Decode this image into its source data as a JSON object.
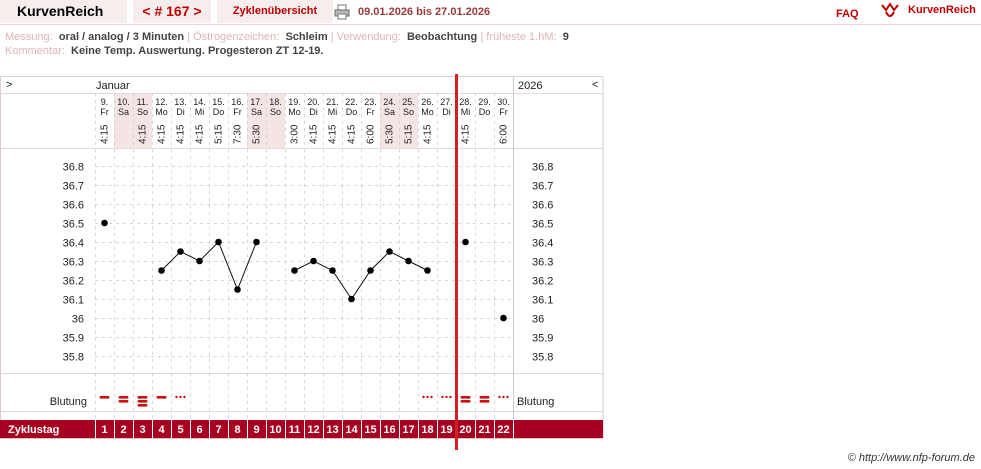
{
  "header": {
    "brand": "KurvenReich",
    "nav_label": "< # 167 >",
    "overview_label": "Zyklenübersicht",
    "date_range": "09.01.2026 bis 27.01.2026",
    "faq_label": "FAQ",
    "logo_text": "KurvenReich"
  },
  "info": {
    "messung_label": "Messung:",
    "messung_value": "oral / analog / 3 Minuten",
    "oestrogen_label": "Östrogenzeichen:",
    "oestrogen_value": "Schleim",
    "verwendung_label": "Verwendung:",
    "verwendung_value": "Beobachtung",
    "hm_label": "früheste 1.hM:",
    "hm_value": "9",
    "kommentar_label": "Kommentar:",
    "kommentar_value": "Keine Temp. Auswertung. Progesteron ZT 12-19."
  },
  "chart": {
    "nav_left": ">",
    "nav_right": "<",
    "month_label": "Januar",
    "year_label": "2026",
    "blutung_label": "Blutung",
    "zyklustag_label": "Zyklustag",
    "colors": {
      "accent": "#a80020",
      "line": "#d42020",
      "weekend": "#f4e4e4",
      "grid": "#c8c8c8"
    }
  },
  "chart_data": {
    "type": "line",
    "ylim": [
      35.75,
      36.85
    ],
    "y_ticks": [
      "36.8",
      "36.7",
      "36.6",
      "36.5",
      "36.4",
      "36.3",
      "36.2",
      "36.1",
      "36",
      "35.9",
      "35.8"
    ],
    "days": [
      {
        "date": "9.",
        "wd": "Fr",
        "time": "4:15",
        "temp": 36.5,
        "cd": "1",
        "bleed": "heavy",
        "we": false
      },
      {
        "date": "10.",
        "wd": "Sa",
        "time": "",
        "temp": null,
        "cd": "2",
        "bleed": "heavy2",
        "we": true
      },
      {
        "date": "11.",
        "wd": "So",
        "time": "4:15",
        "temp": null,
        "cd": "3",
        "bleed": "heavy3",
        "we": true
      },
      {
        "date": "12.",
        "wd": "Mo",
        "time": "4:15",
        "temp": 36.25,
        "cd": "4",
        "bleed": "heavy",
        "we": false
      },
      {
        "date": "13.",
        "wd": "Di",
        "time": "4:15",
        "temp": 36.35,
        "cd": "5",
        "bleed": "spot",
        "we": false
      },
      {
        "date": "14.",
        "wd": "Mi",
        "time": "4:15",
        "temp": 36.3,
        "cd": "6",
        "bleed": "",
        "we": false
      },
      {
        "date": "15.",
        "wd": "Do",
        "time": "5:15",
        "temp": 36.4,
        "cd": "7",
        "bleed": "",
        "we": false
      },
      {
        "date": "16.",
        "wd": "Fr",
        "time": "7:30",
        "temp": 36.15,
        "cd": "8",
        "bleed": "",
        "we": false
      },
      {
        "date": "17.",
        "wd": "Sa",
        "time": "5:30",
        "temp": 36.4,
        "cd": "9",
        "bleed": "",
        "we": true
      },
      {
        "date": "18.",
        "wd": "So",
        "time": "",
        "temp": null,
        "cd": "10",
        "bleed": "",
        "we": true
      },
      {
        "date": "19.",
        "wd": "Mo",
        "time": "3:00",
        "temp": 36.25,
        "cd": "11",
        "bleed": "",
        "we": false
      },
      {
        "date": "20.",
        "wd": "Di",
        "time": "4:15",
        "temp": 36.3,
        "cd": "12",
        "bleed": "",
        "we": false
      },
      {
        "date": "21.",
        "wd": "Mi",
        "time": "4:15",
        "temp": 36.25,
        "cd": "13",
        "bleed": "",
        "we": false
      },
      {
        "date": "22.",
        "wd": "Do",
        "time": "4:15",
        "temp": 36.1,
        "cd": "14",
        "bleed": "",
        "we": false
      },
      {
        "date": "23.",
        "wd": "Fr",
        "time": "6:00",
        "temp": 36.25,
        "cd": "15",
        "bleed": "",
        "we": false
      },
      {
        "date": "24.",
        "wd": "Sa",
        "time": "5:30",
        "temp": 36.35,
        "cd": "16",
        "bleed": "",
        "we": true
      },
      {
        "date": "25.",
        "wd": "So",
        "time": "5:15",
        "temp": 36.3,
        "cd": "17",
        "bleed": "",
        "we": true
      },
      {
        "date": "26.",
        "wd": "Mo",
        "time": "4:15",
        "temp": 36.25,
        "cd": "18",
        "bleed": "spot",
        "we": false
      },
      {
        "date": "27.",
        "wd": "Di",
        "time": "",
        "temp": null,
        "cd": "19",
        "bleed": "spot",
        "we": false
      },
      {
        "date": "28.",
        "wd": "Mi",
        "time": "4:15",
        "temp": 36.4,
        "cd": "20",
        "bleed": "heavy2",
        "we": false
      },
      {
        "date": "29.",
        "wd": "Do",
        "time": "",
        "temp": null,
        "cd": "21",
        "bleed": "heavy2",
        "we": false
      },
      {
        "date": "30.",
        "wd": "Fr",
        "time": "6:00",
        "temp": 36.0,
        "cd": "22",
        "bleed": "spot",
        "we": false
      }
    ],
    "today_index": 19,
    "line_segments": [
      [
        3,
        8
      ],
      [
        10,
        17
      ]
    ]
  },
  "footer": {
    "copyright": "© http://www.nfp-forum.de"
  }
}
